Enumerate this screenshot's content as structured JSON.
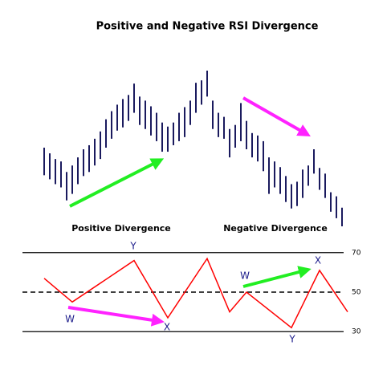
{
  "chart_data": [
    {
      "type": "range-bar",
      "title": "Positive and Negative RSI Divergence",
      "annotations": [
        "Positive Divergence",
        "Negative Divergence"
      ],
      "color": "#1a1a5e",
      "high": [
        117,
        110,
        103,
        100,
        87,
        95,
        105,
        115,
        120,
        128,
        137,
        152,
        162,
        170,
        177,
        182,
        196,
        180,
        175,
        168,
        160,
        148,
        143,
        148,
        160,
        167,
        175,
        197,
        200,
        212,
        175,
        160,
        155,
        140,
        145,
        172,
        150,
        135,
        132,
        125,
        105,
        100,
        93,
        82,
        72,
        75,
        90,
        95,
        115,
        92,
        85,
        62,
        57,
        43
      ],
      "low": [
        83,
        78,
        72,
        68,
        52,
        60,
        72,
        82,
        87,
        95,
        103,
        117,
        128,
        138,
        142,
        150,
        160,
        145,
        140,
        132,
        125,
        112,
        112,
        120,
        125,
        130,
        145,
        160,
        170,
        180,
        140,
        130,
        128,
        105,
        117,
        125,
        115,
        105,
        100,
        88,
        60,
        68,
        60,
        50,
        42,
        45,
        55,
        70,
        85,
        65,
        55,
        38,
        30,
        20
      ]
    },
    {
      "type": "line",
      "color": "#ff0000",
      "x": [
        0,
        5,
        16,
        22,
        29,
        33,
        36,
        44,
        49,
        54
      ],
      "values": [
        57,
        45,
        66,
        37,
        67,
        40,
        50,
        32,
        61,
        40
      ],
      "xlim": [
        0,
        54
      ],
      "ylim": [
        24,
        76
      ],
      "yticks": [
        30,
        50,
        70
      ],
      "annotations": [
        "Y",
        "W",
        "X",
        "W",
        "X",
        "Y"
      ]
    }
  ]
}
